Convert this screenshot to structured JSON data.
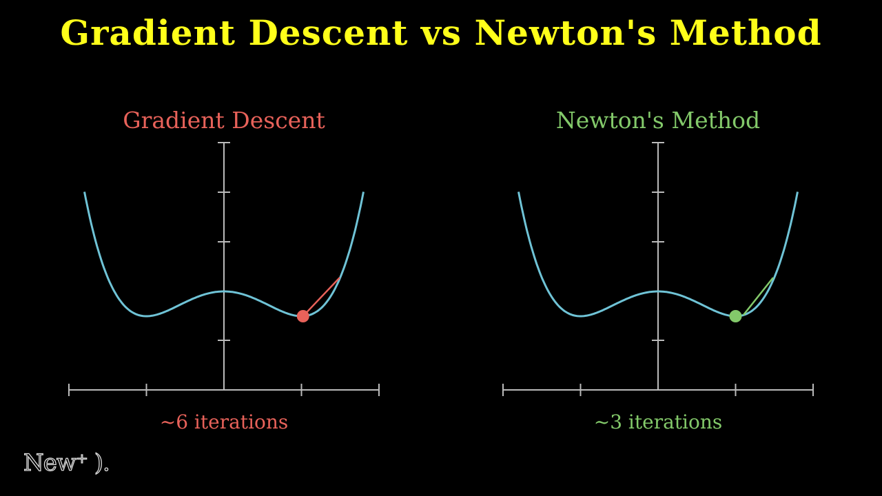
{
  "title": "Gradient Descent vs Newton's Method",
  "watermark": "New⁺ ).",
  "colors": {
    "title": "#ffff1a",
    "curve": "#6fc3d6",
    "axis": "#bbbbbb",
    "gradient_descent": "#e8625a",
    "newton": "#83c96a"
  },
  "panels": [
    {
      "label": "Gradient Descent",
      "iterations": "~6 iterations",
      "color": "#e8625a"
    },
    {
      "label": "Newton's Method",
      "iterations": "~3 iterations",
      "color": "#83c96a"
    }
  ],
  "chart_data": [
    {
      "type": "line",
      "title": "Gradient Descent",
      "function": "double-well quartic f(x) (local max at x=0, minima at x=±1)",
      "x_ticks": [
        -2,
        -1,
        0,
        1,
        2
      ],
      "y_ticks": [
        -1,
        0,
        1,
        2,
        3,
        4
      ],
      "xlim": [
        -2,
        2
      ],
      "ylim": [
        -1,
        5
      ],
      "curve_points": [
        [
          -1.8,
          2.5
        ],
        [
          -1.5,
          1.2
        ],
        [
          -1.2,
          0.25
        ],
        [
          -1.0,
          0.0
        ],
        [
          -0.5,
          0.55
        ],
        [
          0.0,
          1.0
        ],
        [
          0.5,
          0.55
        ],
        [
          1.0,
          0.0
        ],
        [
          1.2,
          0.25
        ],
        [
          1.5,
          1.2
        ],
        [
          1.8,
          2.5
        ]
      ],
      "current_point": [
        1.02,
        0.0
      ],
      "step_segment": [
        [
          1.02,
          0.0
        ],
        [
          1.5,
          0.78
        ]
      ],
      "annotation": "~6 iterations",
      "grid": false
    },
    {
      "type": "line",
      "title": "Newton's Method",
      "function": "double-well quartic f(x) (local max at x=0, minima at x=±1)",
      "x_ticks": [
        -2,
        -1,
        0,
        1,
        2
      ],
      "y_ticks": [
        -1,
        0,
        1,
        2,
        3,
        4
      ],
      "xlim": [
        -2,
        2
      ],
      "ylim": [
        -1,
        5
      ],
      "curve_points": [
        [
          -1.8,
          2.5
        ],
        [
          -1.5,
          1.2
        ],
        [
          -1.2,
          0.25
        ],
        [
          -1.0,
          0.0
        ],
        [
          -0.5,
          0.55
        ],
        [
          0.0,
          1.0
        ],
        [
          0.5,
          0.55
        ],
        [
          1.0,
          0.0
        ],
        [
          1.2,
          0.25
        ],
        [
          1.5,
          1.2
        ],
        [
          1.8,
          2.5
        ]
      ],
      "current_point": [
        1.0,
        0.0
      ],
      "step_segment": [
        [
          1.1,
          0.05
        ],
        [
          1.5,
          0.78
        ]
      ],
      "annotation": "~3 iterations",
      "grid": false
    }
  ]
}
